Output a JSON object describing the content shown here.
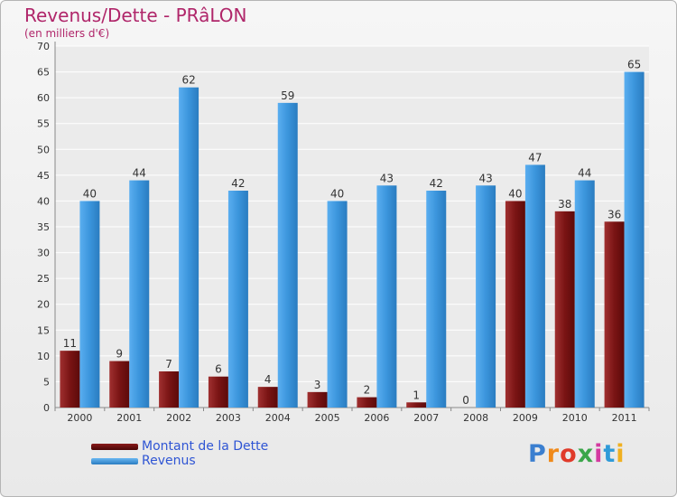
{
  "header": {
    "title": "Revenus/Dette - PRâLON",
    "subtitle": "(en milliers d'€)"
  },
  "chart_data": {
    "type": "bar",
    "title": "Revenus/Dette - PRâLON",
    "subtitle": "(en milliers d'€)",
    "xlabel": "",
    "ylabel": "",
    "ylim": [
      0,
      70
    ],
    "yticks": [
      0,
      5,
      10,
      15,
      20,
      25,
      30,
      35,
      40,
      45,
      50,
      55,
      60,
      65,
      70
    ],
    "grid": true,
    "categories": [
      "2000",
      "2001",
      "2002",
      "2003",
      "2004",
      "2005",
      "2006",
      "2007",
      "2008",
      "2009",
      "2010",
      "2011"
    ],
    "series": [
      {
        "name": "Montant de la Dette",
        "color": "#7a1010",
        "values": [
          11,
          9,
          7,
          6,
          4,
          3,
          2,
          1,
          0,
          40,
          38,
          36
        ]
      },
      {
        "name": "Revenus",
        "color": "#3b95dc",
        "values": [
          40,
          44,
          62,
          42,
          59,
          40,
          43,
          42,
          43,
          47,
          44,
          65
        ]
      }
    ],
    "legend": "bottom-left"
  },
  "legend": {
    "items": [
      {
        "label": "Montant de la Dette",
        "color": "#6b0808"
      },
      {
        "label": "Revenus",
        "color": "#3b95dc"
      }
    ]
  },
  "logo": {
    "letters": [
      "P",
      "r",
      "o",
      "x",
      "i",
      "t",
      "i"
    ],
    "colors": [
      "#3b7fd0",
      "#f08a1a",
      "#e03a2a",
      "#3aa64a",
      "#d43aa0",
      "#2f9ad8",
      "#f0b020"
    ]
  }
}
